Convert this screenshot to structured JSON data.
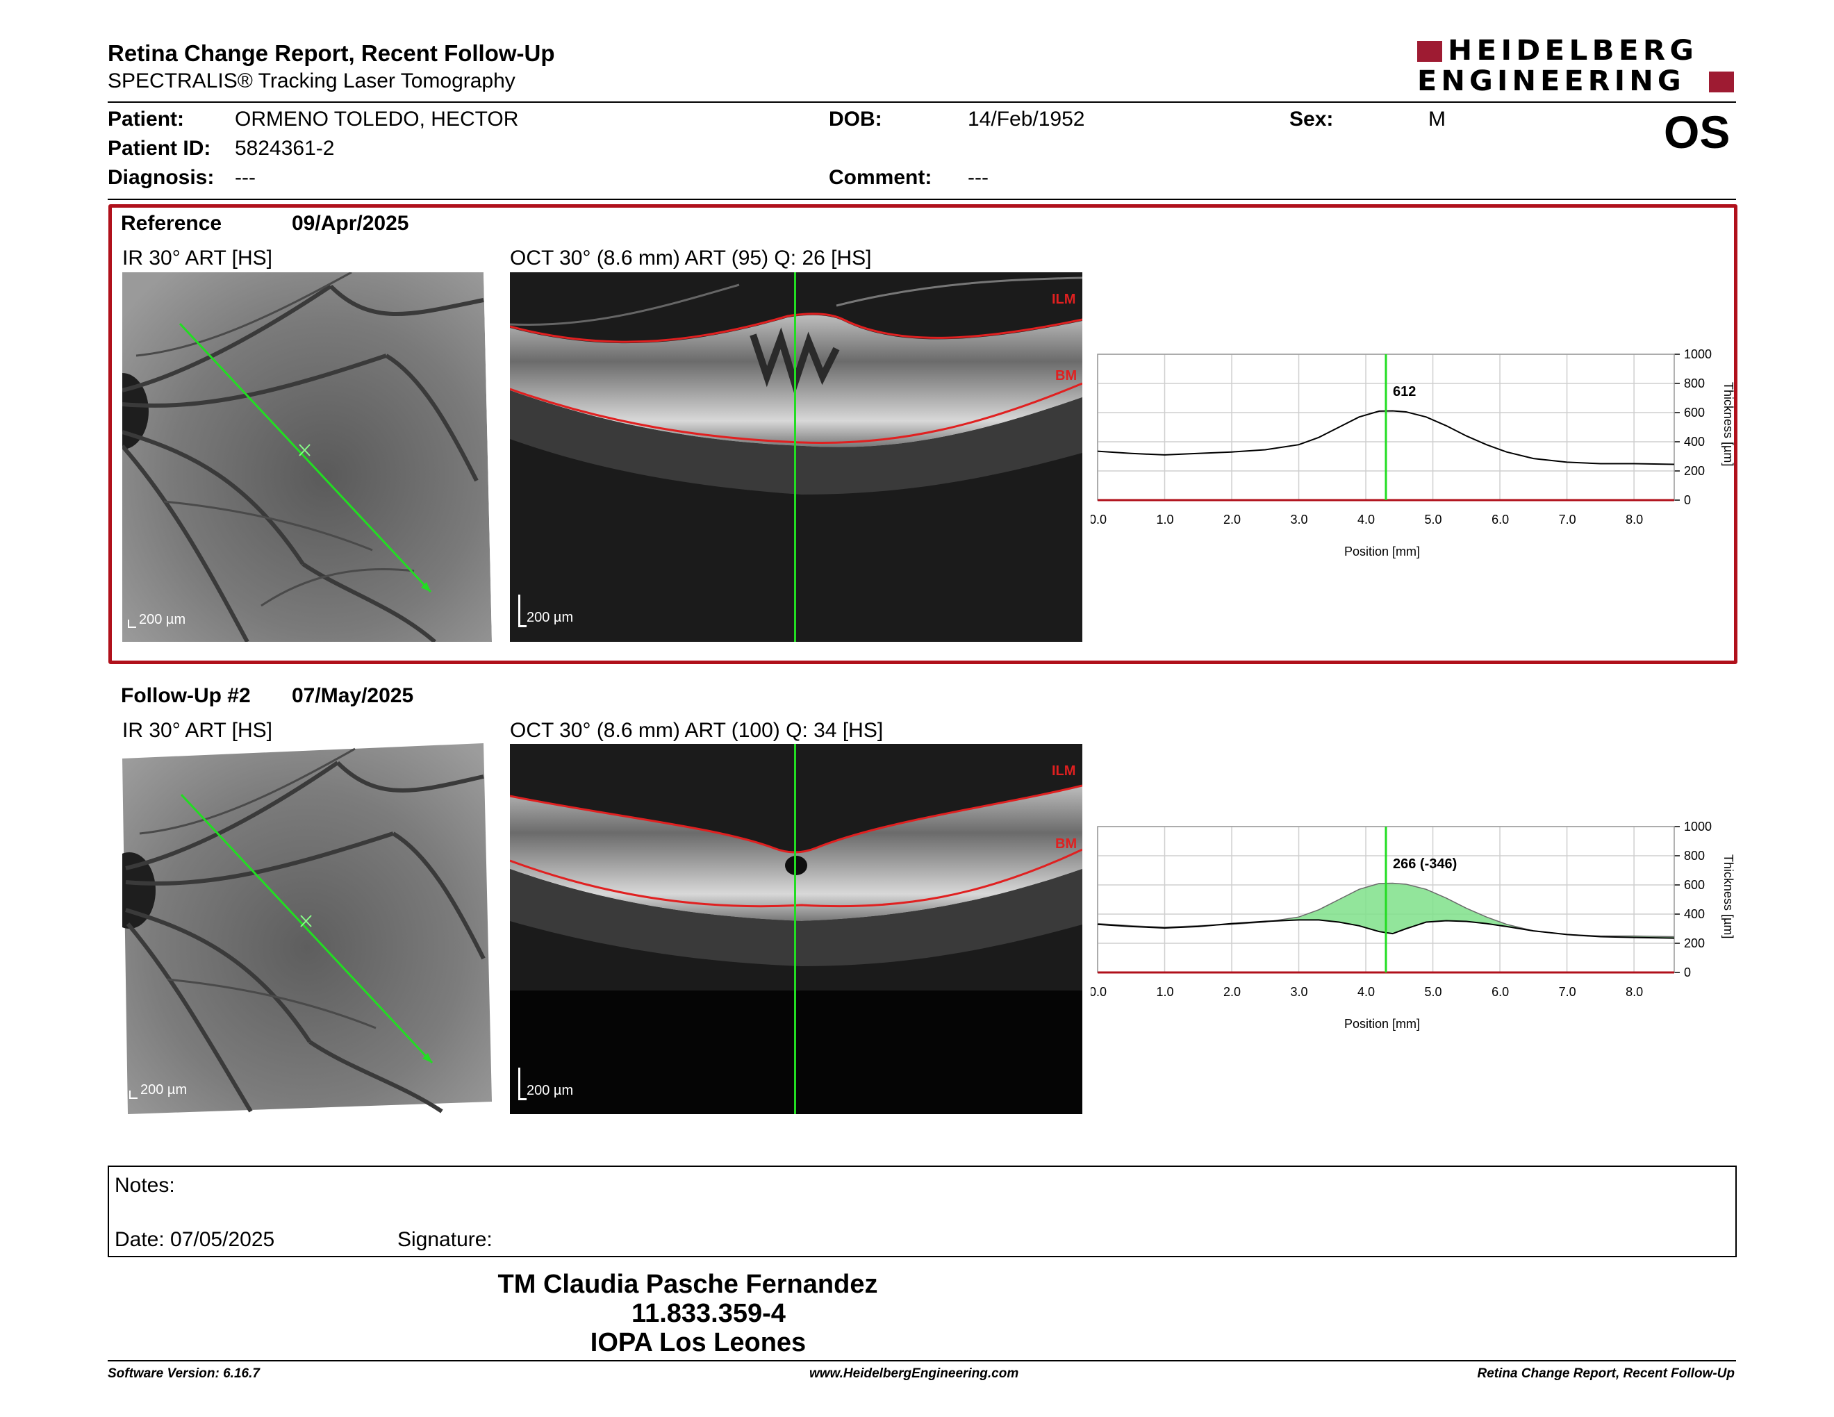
{
  "header": {
    "title": "Retina Change Report, Recent Follow-Up",
    "subtitle": "SPECTRALIS® Tracking Laser Tomography",
    "logo_line1": "HEIDELBERG",
    "logo_line2": "ENGINEERING",
    "eye": "OS",
    "brand_color": "#9e1b32"
  },
  "patient": {
    "name_label": "Patient:",
    "name": "ORMENO TOLEDO, HECTOR",
    "id_label": "Patient ID:",
    "id": "5824361-2",
    "diagnosis_label": "Diagnosis:",
    "diagnosis": "---",
    "dob_label": "DOB:",
    "dob": "14/Feb/1952",
    "comment_label": "Comment:",
    "comment": "---",
    "sex_label": "Sex:",
    "sex": "M"
  },
  "reference": {
    "label": "Reference",
    "date": "09/Apr/2025",
    "ir_title": "IR 30° ART [HS]",
    "oct_title": "OCT 30° (8.6 mm) ART (95) Q: 26 [HS]",
    "scale_ir": "200 µm",
    "scale_oct": "200 µm",
    "ilm": "ILM",
    "bm": "BM"
  },
  "followup": {
    "label": "Follow-Up #2",
    "date": "07/May/2025",
    "ir_title": "IR 30° ART [HS]",
    "oct_title": "OCT 30° (8.6 mm) ART (100) Q: 34 [HS]",
    "scale_ir": "200 µm",
    "scale_oct": "200 µm",
    "ilm": "ILM",
    "bm": "BM"
  },
  "chart_data": [
    {
      "type": "line",
      "xlabel": "Position [mm]",
      "ylabel": "Thickness [µm]",
      "xlim": [
        0.0,
        8.6
      ],
      "ylim": [
        0,
        1000
      ],
      "x_ticks": [
        "0.0",
        "1.0",
        "2.0",
        "3.0",
        "4.0",
        "5.0",
        "6.0",
        "7.0",
        "8.0"
      ],
      "y_ticks": [
        "0",
        "200",
        "400",
        "600",
        "800",
        "1000"
      ],
      "marker_x": 4.3,
      "marker_label": "612",
      "series": [
        {
          "x": [
            0.0,
            0.5,
            1.0,
            1.5,
            2.0,
            2.5,
            3.0,
            3.3,
            3.6,
            3.9,
            4.2,
            4.4,
            4.6,
            4.9,
            5.2,
            5.5,
            5.8,
            6.1,
            6.5,
            7.0,
            7.5,
            8.0,
            8.6
          ],
          "values": [
            335,
            320,
            310,
            320,
            330,
            345,
            380,
            430,
            500,
            570,
            610,
            612,
            605,
            570,
            510,
            440,
            380,
            330,
            285,
            260,
            250,
            250,
            245
          ]
        }
      ]
    },
    {
      "type": "line",
      "xlabel": "Position [mm]",
      "ylabel": "Thickness [µm]",
      "xlim": [
        0.0,
        8.6
      ],
      "ylim": [
        0,
        1000
      ],
      "x_ticks": [
        "0.0",
        "1.0",
        "2.0",
        "3.0",
        "4.0",
        "5.0",
        "6.0",
        "7.0",
        "8.0"
      ],
      "y_ticks": [
        "0",
        "200",
        "400",
        "600",
        "800",
        "1000"
      ],
      "marker_x": 4.3,
      "marker_label": "266 (-346)",
      "fill_color": "#7fe08a",
      "series": [
        {
          "x": [
            0.0,
            0.5,
            1.0,
            1.5,
            2.0,
            2.5,
            3.0,
            3.3,
            3.6,
            3.9,
            4.2,
            4.4,
            4.6,
            4.9,
            5.2,
            5.5,
            5.8,
            6.1,
            6.5,
            7.0,
            7.5,
            8.0,
            8.6
          ],
          "values": [
            330,
            315,
            305,
            315,
            335,
            350,
            360,
            360,
            345,
            320,
            280,
            266,
            300,
            345,
            355,
            350,
            335,
            315,
            285,
            260,
            245,
            240,
            235
          ]
        }
      ]
    }
  ],
  "notes": {
    "notes_label": "Notes:",
    "date_label": "Date: 07/05/2025",
    "signature_label": "Signature:"
  },
  "signer": {
    "line1": "TM Claudia Pasche Fernandez",
    "line2": "11.833.359-4",
    "line3": "IOPA Los Leones"
  },
  "footer": {
    "left": "Software Version: 6.16.7",
    "center": "www.HeidelbergEngineering.com",
    "right": "Retina Change Report, Recent Follow-Up"
  }
}
